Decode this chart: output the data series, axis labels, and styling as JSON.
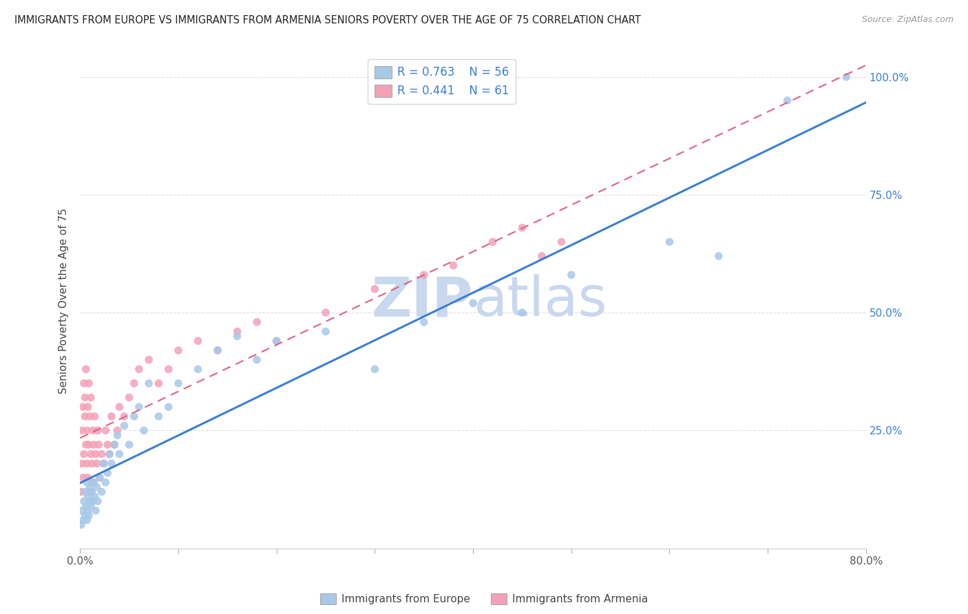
{
  "title": "IMMIGRANTS FROM EUROPE VS IMMIGRANTS FROM ARMENIA SENIORS POVERTY OVER THE AGE OF 75 CORRELATION CHART",
  "source": "Source: ZipAtlas.com",
  "ylabel": "Seniors Poverty Over the Age of 75",
  "x_min": 0.0,
  "x_max": 0.8,
  "y_min": 0.0,
  "y_max": 1.05,
  "europe_R": 0.763,
  "europe_N": 56,
  "armenia_R": 0.441,
  "armenia_N": 61,
  "europe_color": "#a8c8e8",
  "armenia_color": "#f4a0b8",
  "europe_line_color": "#3a7fd4",
  "armenia_line_color": "#e06080",
  "watermark_color": "#c8d8ee",
  "background_color": "#ffffff",
  "grid_color": "#e0e0e0",
  "europe_scatter_x": [
    0.001,
    0.002,
    0.003,
    0.004,
    0.005,
    0.005,
    0.006,
    0.007,
    0.007,
    0.008,
    0.008,
    0.009,
    0.01,
    0.01,
    0.011,
    0.012,
    0.013,
    0.014,
    0.015,
    0.016,
    0.017,
    0.018,
    0.02,
    0.022,
    0.024,
    0.026,
    0.028,
    0.03,
    0.032,
    0.035,
    0.038,
    0.04,
    0.045,
    0.05,
    0.055,
    0.06,
    0.065,
    0.07,
    0.08,
    0.09,
    0.1,
    0.12,
    0.14,
    0.16,
    0.18,
    0.2,
    0.25,
    0.3,
    0.35,
    0.4,
    0.45,
    0.5,
    0.6,
    0.65,
    0.72,
    0.78
  ],
  "europe_scatter_y": [
    0.05,
    0.08,
    0.06,
    0.1,
    0.07,
    0.12,
    0.09,
    0.06,
    0.14,
    0.08,
    0.11,
    0.07,
    0.1,
    0.13,
    0.09,
    0.12,
    0.1,
    0.14,
    0.11,
    0.08,
    0.13,
    0.1,
    0.15,
    0.12,
    0.18,
    0.14,
    0.16,
    0.2,
    0.18,
    0.22,
    0.24,
    0.2,
    0.26,
    0.22,
    0.28,
    0.3,
    0.25,
    0.35,
    0.28,
    0.3,
    0.35,
    0.38,
    0.42,
    0.45,
    0.4,
    0.44,
    0.46,
    0.38,
    0.48,
    0.52,
    0.5,
    0.58,
    0.65,
    0.62,
    0.95,
    1.0
  ],
  "armenia_scatter_x": [
    0.001,
    0.002,
    0.002,
    0.003,
    0.003,
    0.004,
    0.004,
    0.005,
    0.005,
    0.006,
    0.006,
    0.007,
    0.007,
    0.008,
    0.008,
    0.009,
    0.009,
    0.01,
    0.01,
    0.011,
    0.011,
    0.012,
    0.013,
    0.013,
    0.014,
    0.015,
    0.016,
    0.017,
    0.018,
    0.019,
    0.02,
    0.022,
    0.024,
    0.026,
    0.028,
    0.03,
    0.032,
    0.035,
    0.038,
    0.04,
    0.045,
    0.05,
    0.055,
    0.06,
    0.07,
    0.08,
    0.09,
    0.1,
    0.12,
    0.14,
    0.16,
    0.18,
    0.2,
    0.25,
    0.3,
    0.35,
    0.38,
    0.42,
    0.45,
    0.47,
    0.49
  ],
  "armenia_scatter_y": [
    0.12,
    0.18,
    0.25,
    0.3,
    0.15,
    0.35,
    0.2,
    0.28,
    0.32,
    0.22,
    0.38,
    0.25,
    0.18,
    0.3,
    0.15,
    0.22,
    0.35,
    0.12,
    0.28,
    0.2,
    0.32,
    0.18,
    0.25,
    0.14,
    0.22,
    0.28,
    0.2,
    0.18,
    0.25,
    0.22,
    0.15,
    0.2,
    0.18,
    0.25,
    0.22,
    0.2,
    0.28,
    0.22,
    0.25,
    0.3,
    0.28,
    0.32,
    0.35,
    0.38,
    0.4,
    0.35,
    0.38,
    0.42,
    0.44,
    0.42,
    0.46,
    0.48,
    0.44,
    0.5,
    0.55,
    0.58,
    0.6,
    0.65,
    0.68,
    0.62,
    0.65
  ]
}
